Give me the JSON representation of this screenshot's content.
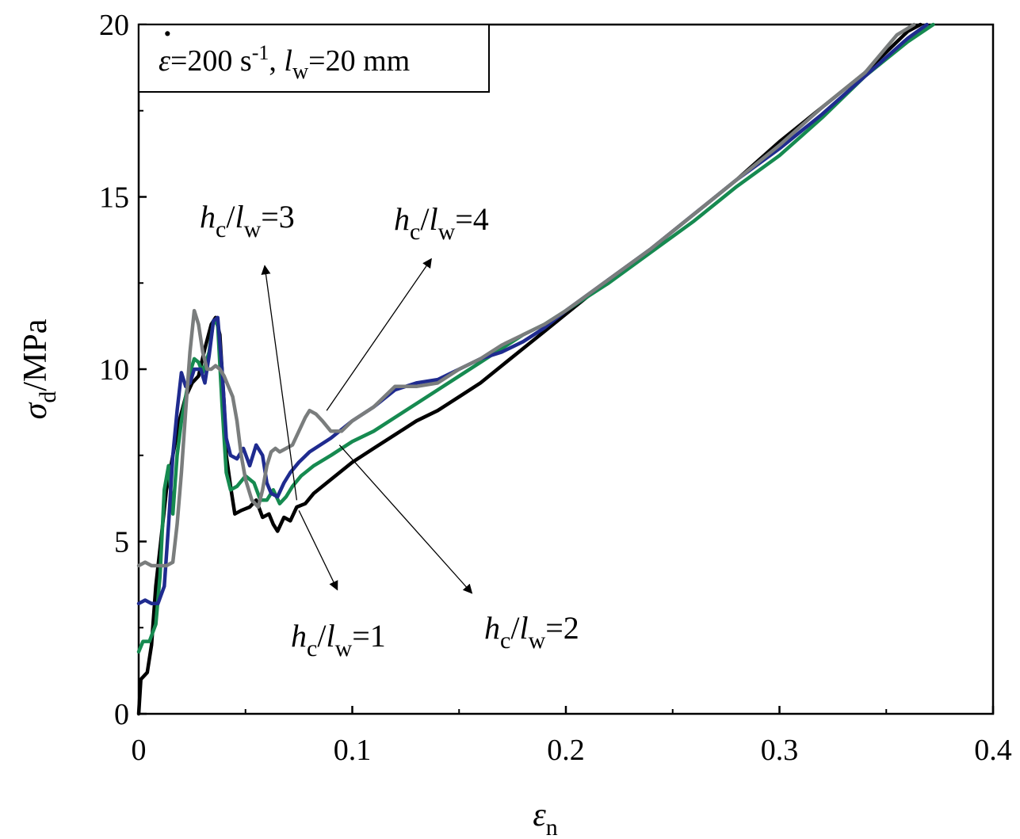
{
  "chart_data": {
    "type": "line",
    "xlabel_symbol": "ε",
    "xlabel_sub": "n",
    "ylabel_symbol": "σ",
    "ylabel_sub": "d",
    "ylabel_unit": "/MPa",
    "xlim": [
      0,
      0.4
    ],
    "ylim": [
      0,
      20
    ],
    "xticks": [
      0,
      0.1,
      0.2,
      0.3,
      0.4
    ],
    "xtick_labels": [
      "0",
      "0.1",
      "0.2",
      "0.3",
      "0.4"
    ],
    "yticks": [
      0,
      5,
      10,
      15,
      20
    ],
    "ytick_labels": [
      "0",
      "5",
      "10",
      "15",
      "20"
    ],
    "legend": {
      "placement": "top-left",
      "rate_symbol": "ε",
      "rate_text": "=200 s",
      "rate_exp": "-1",
      "sep": ", ",
      "l_symbol": "l",
      "l_sub": "w",
      "l_text": "=20 mm"
    },
    "annotations": [
      {
        "h": "h",
        "h_sub": "c",
        "l": "l",
        "l_sub": "w",
        "value": "=3",
        "series": "hc/lw=3"
      },
      {
        "h": "h",
        "h_sub": "c",
        "l": "l",
        "l_sub": "w",
        "value": "=4",
        "series": "hc/lw=4"
      },
      {
        "h": "h",
        "h_sub": "c",
        "l": "l",
        "l_sub": "w",
        "value": "=1",
        "series": "hc/lw=1"
      },
      {
        "h": "h",
        "h_sub": "c",
        "l": "l",
        "l_sub": "w",
        "value": "=2",
        "series": "hc/lw=2"
      }
    ],
    "arrows": [
      {
        "from": [
          0.074,
          6.2
        ],
        "to": [
          0.059,
          13.0
        ]
      },
      {
        "from": [
          0.088,
          8.8
        ],
        "to": [
          0.137,
          13.2
        ]
      },
      {
        "from": [
          0.075,
          5.9
        ],
        "to": [
          0.093,
          3.6
        ]
      },
      {
        "from": [
          0.094,
          7.8
        ],
        "to": [
          0.156,
          3.5
        ]
      }
    ],
    "series": [
      {
        "name": "hc/lw=1",
        "color": "#000000",
        "points": [
          [
            0,
            0
          ],
          [
            0.001,
            1.0
          ],
          [
            0.004,
            1.2
          ],
          [
            0.006,
            2.0
          ],
          [
            0.008,
            3.7
          ],
          [
            0.01,
            4.8
          ],
          [
            0.013,
            6.5
          ],
          [
            0.016,
            7.5
          ],
          [
            0.019,
            8.5
          ],
          [
            0.022,
            9.2
          ],
          [
            0.025,
            9.6
          ],
          [
            0.028,
            9.8
          ],
          [
            0.031,
            10.6
          ],
          [
            0.034,
            11.3
          ],
          [
            0.036,
            11.5
          ],
          [
            0.038,
            11.0
          ],
          [
            0.04,
            9.0
          ],
          [
            0.041,
            7.5
          ],
          [
            0.043,
            6.6
          ],
          [
            0.045,
            5.8
          ],
          [
            0.048,
            5.9
          ],
          [
            0.052,
            6.0
          ],
          [
            0.055,
            6.2
          ],
          [
            0.058,
            5.7
          ],
          [
            0.061,
            5.8
          ],
          [
            0.063,
            5.5
          ],
          [
            0.065,
            5.3
          ],
          [
            0.068,
            5.7
          ],
          [
            0.071,
            5.6
          ],
          [
            0.074,
            6.0
          ],
          [
            0.078,
            6.1
          ],
          [
            0.082,
            6.4
          ],
          [
            0.09,
            6.8
          ],
          [
            0.1,
            7.3
          ],
          [
            0.11,
            7.7
          ],
          [
            0.12,
            8.1
          ],
          [
            0.13,
            8.5
          ],
          [
            0.14,
            8.8
          ],
          [
            0.15,
            9.2
          ],
          [
            0.16,
            9.6
          ],
          [
            0.17,
            10.1
          ],
          [
            0.18,
            10.6
          ],
          [
            0.19,
            11.1
          ],
          [
            0.2,
            11.6
          ],
          [
            0.22,
            12.6
          ],
          [
            0.24,
            13.5
          ],
          [
            0.26,
            14.5
          ],
          [
            0.28,
            15.5
          ],
          [
            0.3,
            16.6
          ],
          [
            0.32,
            17.6
          ],
          [
            0.34,
            18.6
          ],
          [
            0.36,
            19.8
          ],
          [
            0.366,
            20.0
          ]
        ]
      },
      {
        "name": "hc/lw=2",
        "color": "#168a50",
        "points": [
          [
            0,
            1.8
          ],
          [
            0.002,
            2.1
          ],
          [
            0.005,
            2.1
          ],
          [
            0.008,
            2.6
          ],
          [
            0.01,
            4.0
          ],
          [
            0.012,
            6.5
          ],
          [
            0.014,
            7.2
          ],
          [
            0.016,
            5.8
          ],
          [
            0.018,
            7.5
          ],
          [
            0.02,
            8.5
          ],
          [
            0.022,
            9.2
          ],
          [
            0.024,
            9.9
          ],
          [
            0.026,
            10.3
          ],
          [
            0.028,
            10.2
          ],
          [
            0.03,
            9.9
          ],
          [
            0.033,
            10.5
          ],
          [
            0.035,
            11.4
          ],
          [
            0.037,
            11.3
          ],
          [
            0.039,
            9.0
          ],
          [
            0.041,
            7.0
          ],
          [
            0.043,
            6.5
          ],
          [
            0.046,
            6.6
          ],
          [
            0.05,
            6.9
          ],
          [
            0.054,
            6.7
          ],
          [
            0.057,
            6.2
          ],
          [
            0.06,
            6.2
          ],
          [
            0.063,
            6.5
          ],
          [
            0.066,
            6.1
          ],
          [
            0.069,
            6.3
          ],
          [
            0.072,
            6.6
          ],
          [
            0.076,
            6.9
          ],
          [
            0.082,
            7.2
          ],
          [
            0.09,
            7.5
          ],
          [
            0.1,
            7.9
          ],
          [
            0.11,
            8.2
          ],
          [
            0.12,
            8.6
          ],
          [
            0.13,
            9.0
          ],
          [
            0.14,
            9.4
          ],
          [
            0.15,
            9.8
          ],
          [
            0.16,
            10.2
          ],
          [
            0.17,
            10.6
          ],
          [
            0.18,
            11.0
          ],
          [
            0.19,
            11.3
          ],
          [
            0.2,
            11.7
          ],
          [
            0.22,
            12.5
          ],
          [
            0.24,
            13.4
          ],
          [
            0.26,
            14.3
          ],
          [
            0.28,
            15.3
          ],
          [
            0.3,
            16.2
          ],
          [
            0.32,
            17.3
          ],
          [
            0.34,
            18.5
          ],
          [
            0.36,
            19.5
          ],
          [
            0.372,
            20.0
          ]
        ]
      },
      {
        "name": "hc/lw=4",
        "color": "#1f2b8f",
        "points": [
          [
            0,
            3.2
          ],
          [
            0.003,
            3.3
          ],
          [
            0.006,
            3.2
          ],
          [
            0.009,
            3.2
          ],
          [
            0.012,
            3.7
          ],
          [
            0.014,
            5.5
          ],
          [
            0.016,
            7.5
          ],
          [
            0.018,
            8.8
          ],
          [
            0.02,
            9.9
          ],
          [
            0.022,
            9.5
          ],
          [
            0.024,
            9.6
          ],
          [
            0.026,
            10.0
          ],
          [
            0.029,
            10.0
          ],
          [
            0.031,
            9.6
          ],
          [
            0.033,
            10.4
          ],
          [
            0.035,
            11.4
          ],
          [
            0.037,
            11.5
          ],
          [
            0.039,
            10.0
          ],
          [
            0.041,
            8.0
          ],
          [
            0.043,
            7.5
          ],
          [
            0.046,
            7.4
          ],
          [
            0.049,
            7.7
          ],
          [
            0.052,
            7.2
          ],
          [
            0.055,
            7.8
          ],
          [
            0.058,
            7.5
          ],
          [
            0.06,
            6.7
          ],
          [
            0.062,
            6.4
          ],
          [
            0.065,
            6.3
          ],
          [
            0.068,
            6.7
          ],
          [
            0.071,
            7.0
          ],
          [
            0.075,
            7.3
          ],
          [
            0.08,
            7.6
          ],
          [
            0.09,
            8.0
          ],
          [
            0.1,
            8.5
          ],
          [
            0.11,
            8.9
          ],
          [
            0.12,
            9.4
          ],
          [
            0.13,
            9.6
          ],
          [
            0.14,
            9.7
          ],
          [
            0.15,
            10.0
          ],
          [
            0.16,
            10.3
          ],
          [
            0.17,
            10.5
          ],
          [
            0.18,
            10.8
          ],
          [
            0.19,
            11.2
          ],
          [
            0.2,
            11.7
          ],
          [
            0.22,
            12.6
          ],
          [
            0.24,
            13.5
          ],
          [
            0.26,
            14.5
          ],
          [
            0.28,
            15.5
          ],
          [
            0.3,
            16.4
          ],
          [
            0.32,
            17.4
          ],
          [
            0.34,
            18.5
          ],
          [
            0.36,
            19.6
          ],
          [
            0.369,
            20.0
          ]
        ]
      },
      {
        "name": "hc/lw=3",
        "color": "#7a7d7d",
        "points": [
          [
            0,
            4.3
          ],
          [
            0.003,
            4.4
          ],
          [
            0.006,
            4.3
          ],
          [
            0.01,
            4.3
          ],
          [
            0.013,
            4.3
          ],
          [
            0.016,
            4.4
          ],
          [
            0.018,
            5.5
          ],
          [
            0.02,
            7.0
          ],
          [
            0.022,
            8.8
          ],
          [
            0.024,
            10.5
          ],
          [
            0.026,
            11.7
          ],
          [
            0.028,
            11.3
          ],
          [
            0.03,
            10.5
          ],
          [
            0.032,
            10.0
          ],
          [
            0.034,
            10.0
          ],
          [
            0.036,
            10.1
          ],
          [
            0.038,
            10.0
          ],
          [
            0.04,
            9.8
          ],
          [
            0.042,
            9.5
          ],
          [
            0.044,
            9.2
          ],
          [
            0.046,
            8.5
          ],
          [
            0.048,
            7.5
          ],
          [
            0.05,
            6.8
          ],
          [
            0.053,
            6.2
          ],
          [
            0.056,
            6.0
          ],
          [
            0.058,
            6.5
          ],
          [
            0.06,
            7.2
          ],
          [
            0.062,
            7.6
          ],
          [
            0.064,
            7.7
          ],
          [
            0.066,
            7.6
          ],
          [
            0.069,
            7.7
          ],
          [
            0.072,
            7.8
          ],
          [
            0.075,
            8.2
          ],
          [
            0.078,
            8.6
          ],
          [
            0.08,
            8.8
          ],
          [
            0.083,
            8.7
          ],
          [
            0.086,
            8.5
          ],
          [
            0.09,
            8.2
          ],
          [
            0.095,
            8.2
          ],
          [
            0.1,
            8.5
          ],
          [
            0.11,
            8.9
          ],
          [
            0.12,
            9.5
          ],
          [
            0.13,
            9.5
          ],
          [
            0.14,
            9.6
          ],
          [
            0.15,
            10.0
          ],
          [
            0.16,
            10.3
          ],
          [
            0.17,
            10.7
          ],
          [
            0.18,
            11.0
          ],
          [
            0.19,
            11.3
          ],
          [
            0.2,
            11.7
          ],
          [
            0.22,
            12.6
          ],
          [
            0.24,
            13.5
          ],
          [
            0.26,
            14.5
          ],
          [
            0.28,
            15.5
          ],
          [
            0.3,
            16.5
          ],
          [
            0.32,
            17.6
          ],
          [
            0.34,
            18.6
          ],
          [
            0.355,
            19.7
          ],
          [
            0.363,
            20.0
          ]
        ]
      }
    ]
  }
}
